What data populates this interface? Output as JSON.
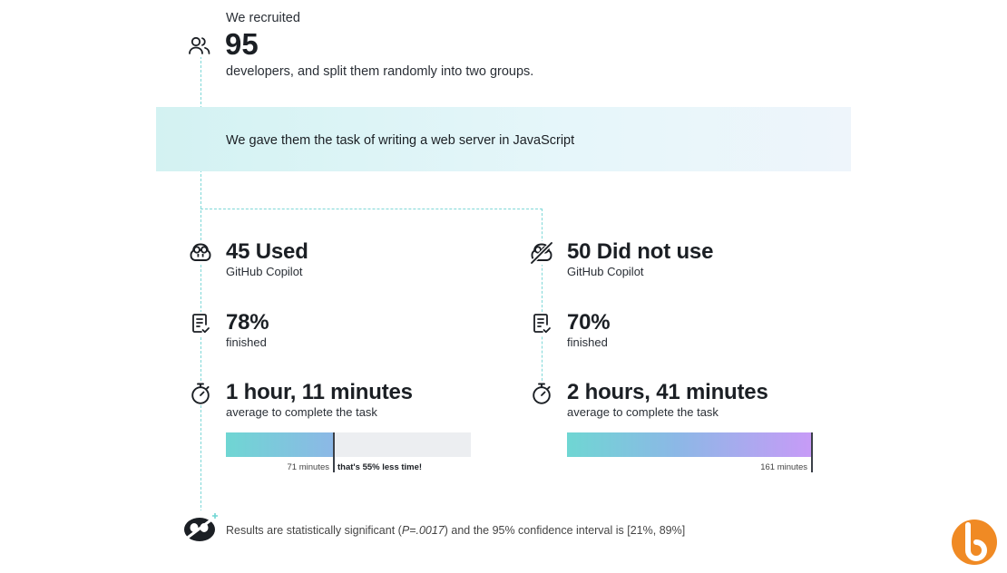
{
  "intro": {
    "lead": "We recruited",
    "count": "95",
    "tail": "developers, and split them randomly into two groups."
  },
  "task": {
    "text": "We gave them the task of writing a web server in JavaScript"
  },
  "groups": [
    {
      "headline": "45 Used",
      "tool": "GitHub Copilot",
      "finished_pct": "78%",
      "finished_label": "finished",
      "time": "1 hour, 11 minutes",
      "time_label": "average to complete the task",
      "bar_caption": "71 minutes",
      "bar_note": "that's 55% less time!",
      "minutes": 71
    },
    {
      "headline": "50 Did not use",
      "tool": "GitHub Copilot",
      "finished_pct": "70%",
      "finished_label": "finished",
      "time": "2 hours, 41 minutes",
      "time_label": "average to complete the task",
      "bar_caption": "161 minutes",
      "minutes": 161
    }
  ],
  "footer": {
    "text_before": "Results are statistically significant (",
    "p_value": "P=.0017",
    "text_after": ") and the 95% confidence interval is [21%, 89%]"
  },
  "colors": {
    "accent_teal": "#6fd6d3",
    "accent_blue": "#8cb8e6",
    "accent_purple": "#c79bf7",
    "logo_orange": "#f08a24"
  },
  "icons": {
    "people": "people-icon",
    "copilot": "copilot-icon",
    "copilot_off": "copilot-off-icon",
    "checklist": "checklist-icon",
    "stopwatch": "stopwatch-icon",
    "rocket": "copilot-rocket-icon",
    "logo": "brand-logo-icon"
  }
}
